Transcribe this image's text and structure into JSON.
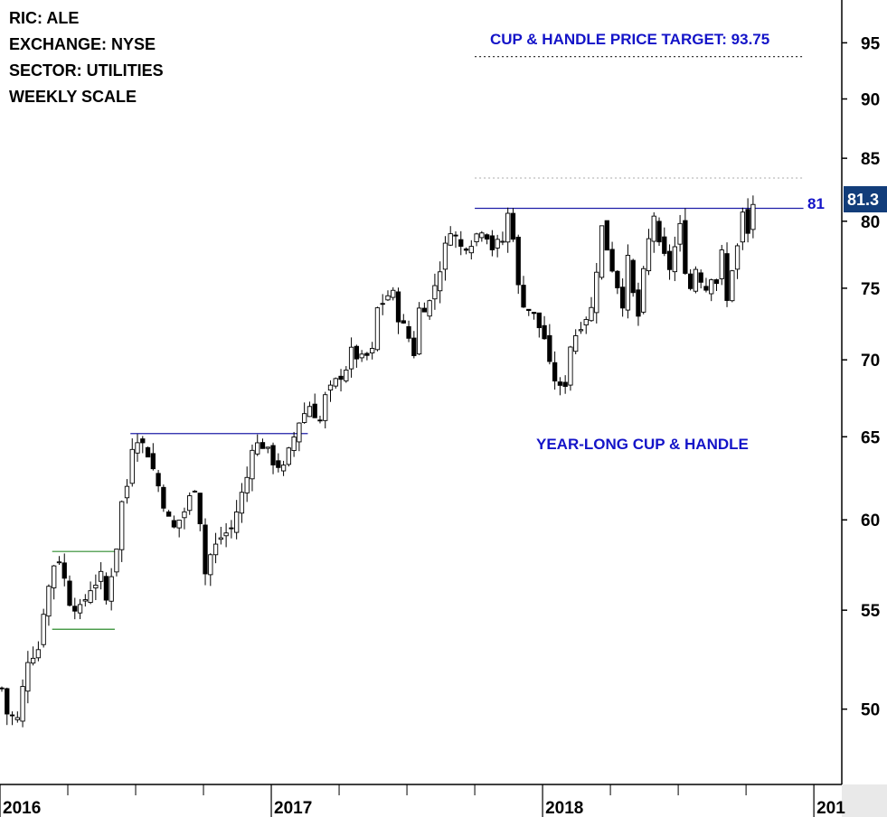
{
  "header": {
    "ric": "RIC: ALE",
    "exchange": "EXCHANGE: NYSE",
    "sector": "SECTOR: UTILITIES",
    "scale": "WEEKLY SCALE"
  },
  "annotations": {
    "target": "CUP & HANDLE PRICE TARGET: 93.75",
    "pattern": "YEAR-LONG CUP & HANDLE",
    "resistance_label": "81",
    "last_price": "81.3"
  },
  "colors": {
    "annotation": "#1414c8",
    "resistance_line": "#1f1fa8",
    "support_box": "#2e8b2e",
    "price_box": "#123d7a",
    "candle": "#000000"
  },
  "chart_data": {
    "type": "candlestick",
    "title": "",
    "scale": "log",
    "ylim": [
      46.5,
      99
    ],
    "y_ticks": [
      50,
      55,
      60,
      65,
      70,
      75,
      80,
      85,
      90,
      95
    ],
    "x_ticks": [
      {
        "label": "2016",
        "week": 0
      },
      {
        "label": "2017",
        "week": 52
      },
      {
        "label": "2018",
        "week": 104
      },
      {
        "label": "201",
        "week": 156
      }
    ],
    "resistance_levels": [
      {
        "label": "81",
        "value": 81.0,
        "from_week": 91,
        "to_week": 154
      },
      {
        "value": 65.2,
        "from_week": 25,
        "to_week": 59
      }
    ],
    "target_level": {
      "value": 93.75,
      "from_week": 91,
      "to_week": 154,
      "style": "dotted"
    },
    "minor_dotted_level": {
      "value": 83.4,
      "from_week": 91,
      "to_week": 154
    },
    "support_box": {
      "high": 58.2,
      "low": 54.0,
      "from_week": 10,
      "to_week": 22
    },
    "weekly_close_path": [
      [
        0,
        51.0
      ],
      [
        1,
        49.8
      ],
      [
        3,
        49.5
      ],
      [
        5,
        52.5
      ],
      [
        7,
        53.0
      ],
      [
        8,
        55.0
      ],
      [
        10,
        57.5
      ],
      [
        11,
        57.8
      ],
      [
        13,
        55.5
      ],
      [
        15,
        55.0
      ],
      [
        17,
        56.2
      ],
      [
        19,
        56.8
      ],
      [
        20,
        55.5
      ],
      [
        22,
        58.5
      ],
      [
        23,
        61.0
      ],
      [
        24,
        62.0
      ],
      [
        25,
        64.5
      ],
      [
        26,
        65.0
      ],
      [
        28,
        64.0
      ],
      [
        30,
        62.0
      ],
      [
        32,
        60.0
      ],
      [
        33,
        59.5
      ],
      [
        35,
        60.5
      ],
      [
        37,
        62.0
      ],
      [
        38,
        60.0
      ],
      [
        39,
        57.0
      ],
      [
        40,
        58.0
      ],
      [
        42,
        59.0
      ],
      [
        44,
        59.5
      ],
      [
        46,
        61.5
      ],
      [
        47,
        62.5
      ],
      [
        48,
        64.5
      ],
      [
        50,
        64.5
      ],
      [
        52,
        63.5
      ],
      [
        54,
        63.0
      ],
      [
        55,
        64.0
      ],
      [
        57,
        66.0
      ],
      [
        59,
        67.0
      ],
      [
        61,
        66.0
      ],
      [
        62,
        67.5
      ],
      [
        64,
        68.5
      ],
      [
        66,
        69.5
      ],
      [
        67,
        70.5
      ],
      [
        69,
        70.0
      ],
      [
        71,
        70.5
      ],
      [
        72,
        73.5
      ],
      [
        74,
        74.5
      ],
      [
        75,
        74.5
      ],
      [
        76,
        73.0
      ],
      [
        78,
        71.5
      ],
      [
        79,
        70.5
      ],
      [
        80,
        73.5
      ],
      [
        82,
        74.0
      ],
      [
        84,
        76.5
      ],
      [
        86,
        79.5
      ],
      [
        88,
        78.0
      ],
      [
        90,
        78.5
      ],
      [
        92,
        79.5
      ],
      [
        93,
        79.0
      ],
      [
        94,
        78.0
      ],
      [
        96,
        78.5
      ],
      [
        97,
        80.5
      ],
      [
        98,
        79.0
      ],
      [
        99,
        75.0
      ],
      [
        100,
        74.0
      ],
      [
        102,
        73.0
      ],
      [
        104,
        71.5
      ],
      [
        105,
        69.5
      ],
      [
        107,
        68.0
      ],
      [
        108,
        68.5
      ],
      [
        109,
        71.0
      ],
      [
        111,
        72.5
      ],
      [
        113,
        73.5
      ],
      [
        114,
        76.5
      ],
      [
        115,
        79.5
      ],
      [
        117,
        76.5
      ],
      [
        119,
        74.0
      ],
      [
        120,
        77.0
      ],
      [
        121,
        74.5
      ],
      [
        122,
        73.0
      ],
      [
        123,
        76.0
      ],
      [
        124,
        78.5
      ],
      [
        125,
        80.5
      ],
      [
        126,
        78.0
      ],
      [
        128,
        76.5
      ],
      [
        130,
        79.5
      ],
      [
        131,
        76.5
      ],
      [
        132,
        75.0
      ],
      [
        133,
        76.5
      ],
      [
        135,
        75.0
      ],
      [
        136,
        76.0
      ],
      [
        137,
        75.5
      ],
      [
        138,
        77.5
      ],
      [
        139,
        74.0
      ],
      [
        140,
        76.5
      ],
      [
        141,
        78.0
      ],
      [
        142,
        80.5
      ],
      [
        143,
        79.0
      ],
      [
        144,
        81.3
      ]
    ],
    "last_value": 81.3
  }
}
